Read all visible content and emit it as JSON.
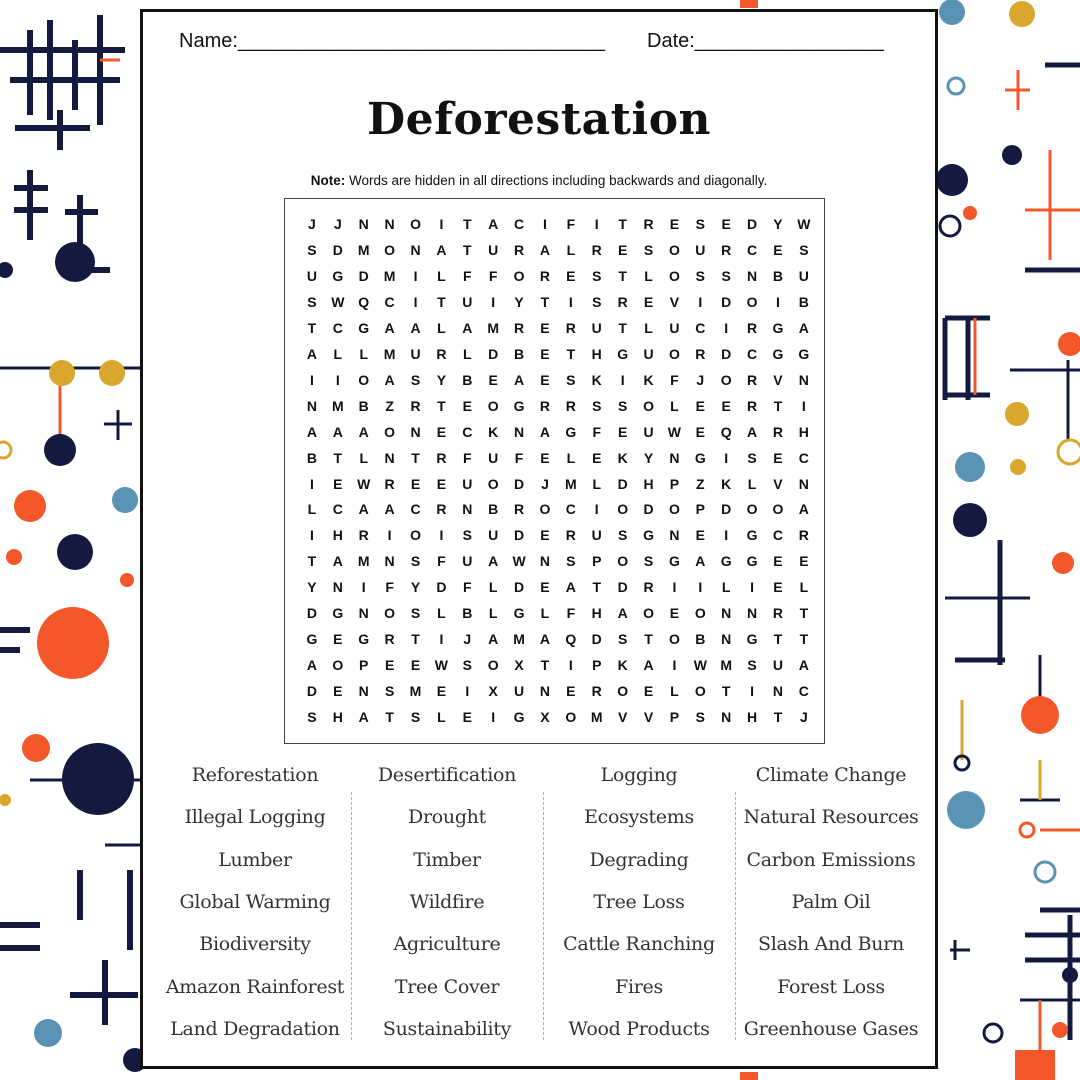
{
  "header": {
    "name_label": "Name:_________________________________",
    "date_label": "Date:_________________"
  },
  "title": "Deforestation",
  "note": {
    "bold": "Note:",
    "text": " Words are hidden in all directions including backwards and diagonally."
  },
  "grid": [
    "JJNNOITACIFITRESEDYW",
    "SDMONATURALRESOURCES",
    "UGDMILFFORESTLOSSNBU",
    "SWQCITUIYTISREVIDOIB",
    "TCGAALAMRERUTLUCIRGA",
    "ALLMURLDBETHGUORDCGG",
    "IIOASYBEAESKIKFJORVN",
    "NMBZRTEOGRRSSOLEERTI",
    "AAAONECKNAGFEUWEQARH",
    "BTLNTRFUFELEKYNGISEC",
    "IEWREEUODJMLDHPZKLVN",
    "LCAACRNBROCIODOPDOOA",
    "IHRIOISUDERUSGNEIGCR",
    "TAMNSFUAWNSPOSGAGGEE",
    "YNIFYDFLDEATDRIILIEL",
    "DGNOSLBLGLFHAOEONNRT",
    "GEGRTIJAMAQDSTOBNGTT",
    "AOPEEWSOXTIPKAIWMSUA",
    "DENSMEIXUNEROELOTINC",
    "SHATSLEIGXOMVVPSNHTJ"
  ],
  "words": [
    [
      "Reforestation",
      "Illegal Logging",
      "Lumber",
      "Global Warming",
      "Biodiversity",
      "Amazon Rainforest",
      "Land Degradation"
    ],
    [
      "Desertification",
      "Drought",
      "Timber",
      "Wildfire",
      "Agriculture",
      "Tree Cover",
      "Sustainability"
    ],
    [
      "Logging",
      "Ecosystems",
      "Degrading",
      "Tree Loss",
      "Cattle Ranching",
      "Fires",
      "Wood Products"
    ],
    [
      "Climate Change",
      "Natural Resources",
      "Carbon Emissions",
      "Palm Oil",
      "Slash And Burn",
      "Forest Loss",
      "Greenhouse Gases"
    ]
  ],
  "colors": {
    "navy": "#14193f",
    "orange": "#f4582a",
    "gold": "#d9a72e",
    "blue": "#5a93b3"
  }
}
